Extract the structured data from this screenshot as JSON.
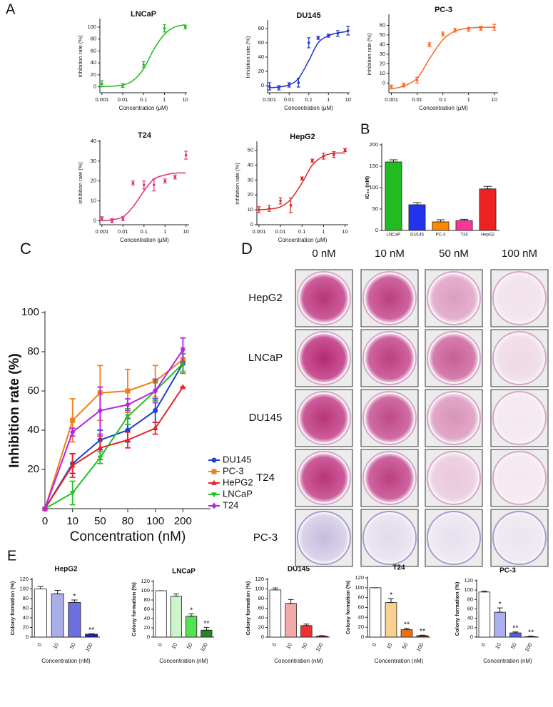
{
  "panel_labels": [
    "A",
    "B",
    "C",
    "D",
    "E"
  ],
  "image_grid": {
    "columns": [
      "0 nM",
      "10 nM",
      "50 nM",
      "100 nM"
    ],
    "rows": [
      "HepG2",
      "LNCaP",
      "DU145",
      "T24",
      "PC-3"
    ]
  },
  "chart_data": [
    {
      "type": "dose_response",
      "title": "LNCaP",
      "xlabel": "Concentration (μM)",
      "ylabel": "Inhibition rate (%)",
      "log_x": true,
      "color": "#22bb22",
      "x": [
        0.001,
        0.01,
        0.1,
        1,
        10
      ],
      "values": [
        5,
        2,
        37,
        98,
        100
      ],
      "errors": [
        5,
        3,
        5,
        6,
        3
      ],
      "curve_x": [
        0.001,
        0.003,
        0.01,
        0.03,
        0.1,
        0.3,
        1,
        3,
        10
      ],
      "curve_values": [
        0.3,
        1,
        3,
        10,
        30,
        62,
        88,
        100,
        104
      ],
      "xlim": [
        0.0008,
        12
      ],
      "xticks": [
        0.001,
        0.01,
        0.1,
        1,
        10
      ],
      "ylim": [
        -10,
        112
      ],
      "yticks": [
        0,
        20,
        40,
        60,
        80,
        100
      ]
    },
    {
      "type": "dose_response",
      "title": "DU145",
      "xlabel": "Concentration (μM)",
      "ylabel": "Inhibition rate (%)",
      "log_x": true,
      "color": "#2233cc",
      "x": [
        0.001,
        0.003,
        0.01,
        0.03,
        0.1,
        0.3,
        1,
        3,
        10
      ],
      "values": [
        -1,
        -3,
        1,
        4,
        60,
        67,
        70,
        73,
        77
      ],
      "errors": [
        5,
        3,
        3,
        6,
        7,
        2,
        2,
        4,
        6
      ],
      "curve_x": [
        0.001,
        0.003,
        0.01,
        0.03,
        0.1,
        0.3,
        1,
        3,
        10
      ],
      "curve_values": [
        -3,
        -2,
        1,
        10,
        35,
        60,
        70,
        74,
        76
      ],
      "xlim": [
        0.0008,
        12
      ],
      "xticks": [
        0.001,
        0.01,
        0.1,
        1,
        10
      ],
      "ylim": [
        -10,
        90
      ],
      "yticks": [
        0,
        20,
        40,
        60,
        80
      ]
    },
    {
      "type": "dose_response",
      "title": "PC-3",
      "xlabel": "Concentration (μM)",
      "ylabel": "Inhibition rate (%)",
      "log_x": true,
      "color": "#ff6622",
      "x": [
        0.001,
        0.003,
        0.01,
        0.03,
        0.1,
        0.3,
        1,
        3,
        10
      ],
      "values": [
        -4,
        -2,
        3,
        40,
        51,
        55,
        56,
        57,
        58
      ],
      "errors": [
        2,
        2,
        3,
        2,
        2,
        2,
        2,
        2,
        3
      ],
      "curve_x": [
        0.001,
        0.003,
        0.01,
        0.03,
        0.1,
        0.3,
        1,
        3,
        10
      ],
      "curve_values": [
        -6,
        -3,
        5,
        25,
        45,
        54,
        57,
        58,
        58
      ],
      "xlim": [
        0.0008,
        14
      ],
      "xticks": [
        0.001,
        0.01,
        0.1,
        1,
        10
      ],
      "ylim": [
        -10,
        70
      ],
      "yticks": [
        0,
        10,
        20,
        30,
        40,
        50,
        60
      ]
    },
    {
      "type": "dose_response",
      "title": "T24",
      "xlabel": "Concentration (μM)",
      "ylabel": "Inhibition rate (%)",
      "log_x": true,
      "color": "#e0307a",
      "x": [
        0.001,
        0.003,
        0.01,
        0.03,
        0.1,
        0.3,
        1,
        3,
        10
      ],
      "values": [
        1,
        0,
        1,
        19,
        18,
        18,
        20,
        22,
        33
      ],
      "errors": [
        1,
        1,
        1,
        1,
        2,
        3,
        1,
        1,
        2
      ],
      "curve_x": [
        0.001,
        0.003,
        0.01,
        0.03,
        0.1,
        0.3,
        1,
        3,
        10
      ],
      "curve_values": [
        0,
        0.5,
        2,
        7,
        15,
        21,
        23,
        24,
        24
      ],
      "xlim": [
        0.0008,
        14
      ],
      "xticks": [
        0.001,
        0.01,
        0.1,
        1,
        10
      ],
      "ylim": [
        -2,
        40
      ],
      "yticks": [
        0,
        10,
        20,
        30,
        40
      ]
    },
    {
      "type": "dose_response",
      "title": "HepG2",
      "xlabel": "Concentration (μM)",
      "ylabel": "Inhibition rate (%)",
      "log_x": true,
      "color": "#e02828",
      "x": [
        0.001,
        0.003,
        0.01,
        0.03,
        0.1,
        0.3,
        1,
        3,
        10
      ],
      "values": [
        10,
        11,
        16,
        13,
        31,
        43,
        46,
        47,
        50
      ],
      "errors": [
        2,
        2,
        2,
        5,
        1,
        1,
        2,
        2,
        1
      ],
      "curve_x": [
        0.001,
        0.003,
        0.01,
        0.03,
        0.1,
        0.3,
        1,
        3,
        10
      ],
      "curve_values": [
        10,
        10.5,
        12,
        17,
        28,
        40,
        46,
        48,
        48
      ],
      "xlim": [
        0.0008,
        14
      ],
      "xticks": [
        0.001,
        0.01,
        0.1,
        1,
        10
      ],
      "ylim": [
        0,
        55
      ],
      "yticks": [
        0,
        10,
        20,
        30,
        40,
        50
      ]
    },
    {
      "type": "bar",
      "ylabel": "IC₅₀ (nM)",
      "categories": [
        "LNCaP",
        "DU145",
        "PC-3",
        "T24",
        "HepG2"
      ],
      "values": [
        160,
        60,
        20,
        23,
        97
      ],
      "errors": [
        5,
        5,
        5,
        3,
        6
      ],
      "colors": [
        "#22bb22",
        "#2233ee",
        "#ff8800",
        "#ff3399",
        "#ee2222"
      ],
      "ylim": [
        0,
        200
      ],
      "yticks": [
        0,
        50,
        100,
        150,
        200
      ]
    },
    {
      "type": "line",
      "xlabel": "Concentration (nM)",
      "ylabel": "Inhibition rate (%)",
      "legend": "right",
      "categories": [
        "0",
        "10",
        "50",
        "80",
        "100",
        "200"
      ],
      "ylim": [
        0,
        100
      ],
      "yticks": [
        20,
        40,
        60,
        80,
        100
      ],
      "series": [
        {
          "name": "DU145",
          "color": "#1f3fd6",
          "values": [
            0,
            23,
            35,
            40,
            50,
            74
          ],
          "errors": [
            0,
            5,
            5,
            6,
            6,
            5
          ]
        },
        {
          "name": "PC-3",
          "color": "#f07f1a",
          "values": [
            0,
            45,
            59,
            60,
            65,
            76
          ],
          "errors": [
            0,
            11,
            14,
            11,
            8,
            6
          ]
        },
        {
          "name": "HePG2",
          "color": "#e52222",
          "values": [
            0,
            22,
            31,
            35,
            41,
            62
          ],
          "errors": [
            0,
            6,
            6,
            4,
            3,
            0
          ]
        },
        {
          "name": "LNCaP",
          "color": "#22c022",
          "values": [
            0,
            8,
            26,
            47,
            60,
            74
          ],
          "errors": [
            0,
            6,
            3,
            4,
            5,
            5
          ]
        },
        {
          "name": "T24",
          "color": "#b722e6",
          "values": [
            0,
            39,
            50,
            53,
            60,
            81
          ],
          "errors": [
            0,
            2,
            12,
            3,
            6,
            6
          ]
        }
      ]
    },
    {
      "type": "bar",
      "title": "HepG2",
      "xlabel": "Concentration (nM)",
      "ylabel": "Colony formation (%)",
      "categories": [
        "0",
        "10",
        "50",
        "100"
      ],
      "values": [
        100,
        90,
        72,
        6
      ],
      "errors": [
        5,
        7,
        5,
        1
      ],
      "significance": [
        null,
        null,
        "*",
        "**"
      ],
      "colors": [
        "#ffffff",
        "#a9aee8",
        "#6c6fe0",
        "#2020c0"
      ],
      "ylim": [
        0,
        120
      ],
      "yticks": [
        0,
        20,
        40,
        60,
        80,
        100,
        120
      ]
    },
    {
      "type": "bar",
      "title": "LNCaP",
      "xlabel": "Concentration (nM)",
      "ylabel": "Colony formation (%)",
      "categories": [
        "0",
        "10",
        "50",
        "100"
      ],
      "values": [
        100,
        88,
        45,
        15
      ],
      "errors": [
        0,
        5,
        5,
        6
      ],
      "significance": [
        null,
        null,
        "*",
        "**"
      ],
      "colors": [
        "#ffffff",
        "#ccf5cc",
        "#55e055",
        "#228822"
      ],
      "ylim": [
        0,
        120
      ],
      "yticks": [
        0,
        20,
        40,
        60,
        80,
        100,
        120
      ]
    },
    {
      "type": "bar",
      "title": "DU145",
      "xlabel": "Concentration (nM)",
      "ylabel": "Colony formation (%)",
      "categories": [
        "0",
        "10",
        "50",
        "100"
      ],
      "values": [
        98,
        70,
        24,
        2
      ],
      "errors": [
        4,
        8,
        3,
        1
      ],
      "colors": [
        "#ffffff",
        "#f5a8a8",
        "#ee3030",
        "#880000"
      ],
      "ylim": [
        0,
        120
      ],
      "yticks": [
        0,
        20,
        40,
        60,
        80,
        100,
        120
      ]
    },
    {
      "type": "bar",
      "title": "T24",
      "xlabel": "Concentration (nM)",
      "ylabel": "Colony formation (%)",
      "categories": [
        "0",
        "10",
        "50",
        "100"
      ],
      "values": [
        100,
        70,
        15,
        3
      ],
      "errors": [
        0,
        8,
        3,
        1
      ],
      "significance": [
        null,
        "*",
        "**",
        "**"
      ],
      "colors": [
        "#ffffff",
        "#fad090",
        "#f07010",
        "#803000"
      ],
      "ylim": [
        0,
        120
      ],
      "yticks": [
        0,
        20,
        40,
        60,
        80,
        100,
        120
      ]
    },
    {
      "type": "bar",
      "title": "PC-3",
      "xlabel": "Concentration (nM)",
      "ylabel": "Colony formation (%)",
      "categories": [
        "0",
        "10",
        "50",
        "100"
      ],
      "values": [
        96,
        53,
        9,
        1
      ],
      "errors": [
        2,
        9,
        2,
        1
      ],
      "significance": [
        null,
        "*",
        "**",
        "**"
      ],
      "colors": [
        "#ffffff",
        "#aab0f0",
        "#5560e0",
        "#2030b0"
      ],
      "ylim": [
        0,
        120
      ],
      "yticks": [
        0,
        20,
        40,
        60,
        80,
        100,
        120
      ]
    }
  ]
}
